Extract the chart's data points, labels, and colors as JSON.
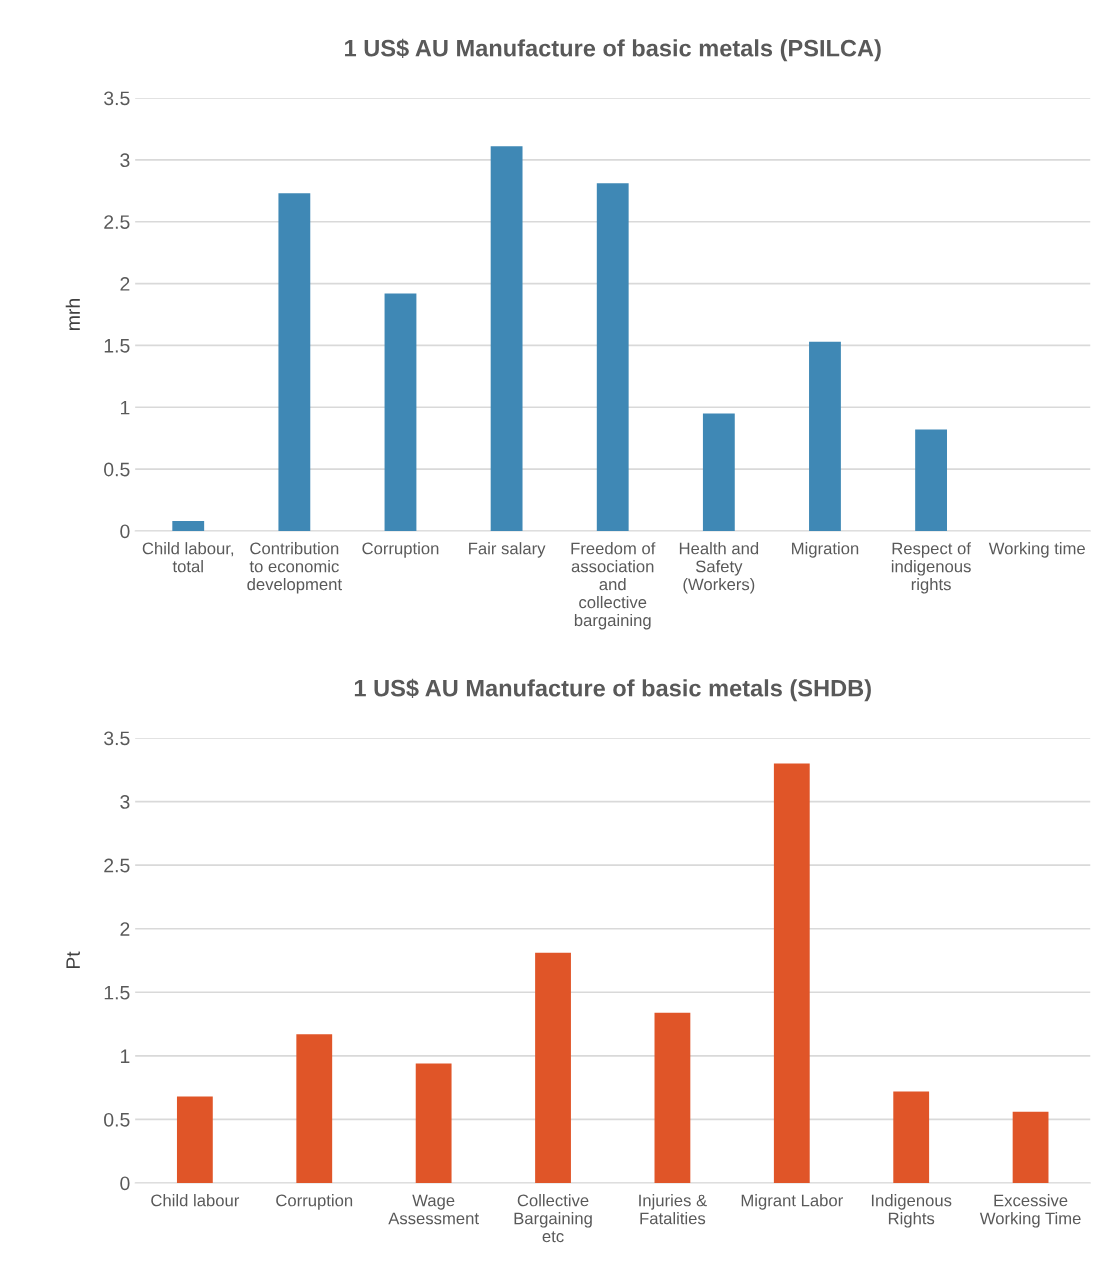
{
  "chart_data": [
    {
      "type": "bar",
      "title": "1 US$ AU Manufacture of basic metals (PSILCA)",
      "ylabel": "mrh",
      "categories": [
        "Child labour, total",
        "Contribution to economic development",
        "Corruption",
        "Fair salary",
        "Freedom of association and collective bargaining",
        "Health and Safety (Workers)",
        "Migration",
        "Respect of indigenous rights",
        "Working time"
      ],
      "values": [
        0.08,
        2.73,
        1.92,
        3.11,
        2.81,
        0.95,
        1.53,
        0.82,
        0
      ],
      "color": "#3f88b5",
      "ylim": [
        0,
        3.5
      ],
      "yticks": [
        0,
        0.5,
        1,
        1.5,
        2,
        2.5,
        3,
        3.5
      ],
      "grid": "y"
    },
    {
      "type": "bar",
      "title": "1 US$ AU Manufacture of basic metals (SHDB)",
      "ylabel": "Pt",
      "categories": [
        "Child labour",
        "Corruption",
        "Wage Assessment",
        "Collective Bargaining etc",
        "Injuries & Fatalities",
        "Migrant Labor",
        "Indigenous Rights",
        "Excessive Working Time"
      ],
      "values": [
        0.68,
        1.17,
        0.94,
        1.81,
        1.34,
        3.3,
        0.72,
        0.56
      ],
      "color": "#e05528",
      "ylim": [
        0,
        3.5
      ],
      "yticks": [
        0,
        0.5,
        1,
        1.5,
        2,
        2.5,
        3,
        3.5
      ],
      "grid": "y"
    }
  ]
}
